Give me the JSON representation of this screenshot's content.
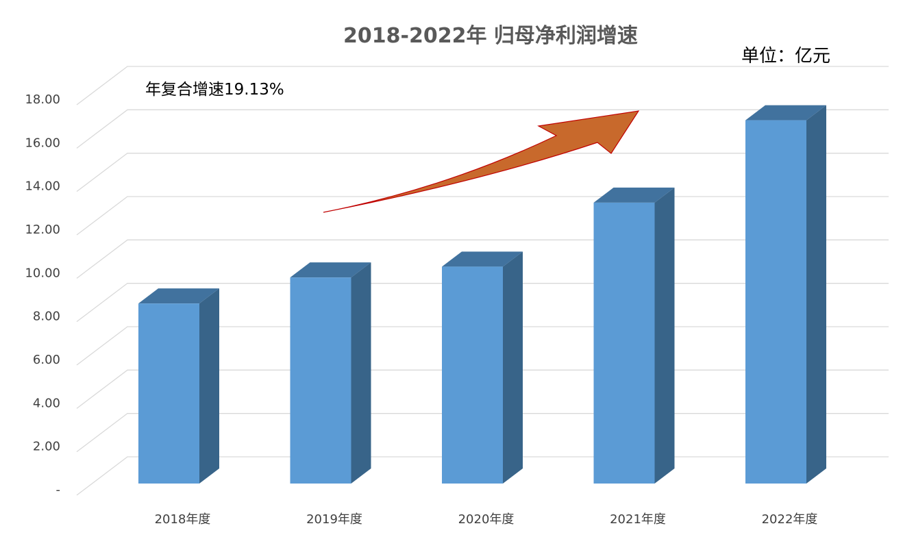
{
  "chart_data": {
    "type": "bar",
    "title": "2018-2022年 归母净利润增速",
    "unit_label": "单位：亿元",
    "annotation": "年复合增速19.13%",
    "categories": [
      "2018年度",
      "2019年度",
      "2020年度",
      "2021年度",
      "2022年度"
    ],
    "values": [
      8.3,
      9.5,
      10.0,
      12.95,
      16.75
    ],
    "ylim": [
      0,
      18
    ],
    "yticks": [
      "-",
      "2.00",
      "4.00",
      "6.00",
      "8.00",
      "10.00",
      "12.00",
      "14.00",
      "16.00",
      "18.00"
    ],
    "grid": true,
    "legend": "none",
    "colors": {
      "bar_front": "#5b9bd5",
      "bar_side": "#386489",
      "bar_top": "#41729e",
      "arrow": "#c8692c",
      "arrow_outline": "#c00000"
    }
  }
}
